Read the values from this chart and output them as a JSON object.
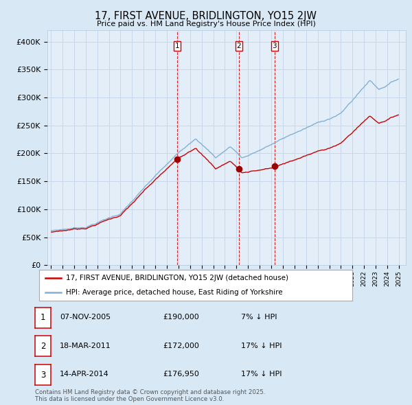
{
  "title": "17, FIRST AVENUE, BRIDLINGTON, YO15 2JW",
  "subtitle": "Price paid vs. HM Land Registry's House Price Index (HPI)",
  "legend_line1": "17, FIRST AVENUE, BRIDLINGTON, YO15 2JW (detached house)",
  "legend_line2": "HPI: Average price, detached house, East Riding of Yorkshire",
  "sale1_date": "07-NOV-2005",
  "sale1_price": 190000,
  "sale1_pct": "7% ↓ HPI",
  "sale2_date": "18-MAR-2011",
  "sale2_price": 172000,
  "sale2_pct": "17% ↓ HPI",
  "sale3_date": "14-APR-2014",
  "sale3_price": 176950,
  "sale3_pct": "17% ↓ HPI",
  "footer": "Contains HM Land Registry data © Crown copyright and database right 2025.\nThis data is licensed under the Open Government Licence v3.0.",
  "bg_color": "#d8e8f5",
  "plot_bg_color": "#e4eef8",
  "line_blue": "#82b0d8",
  "line_red": "#cc0000",
  "marker_color": "#990000",
  "grid_color": "#c8d8ea",
  "vline_color": "#cc0000",
  "yticks": [
    0,
    50000,
    100000,
    150000,
    200000,
    250000,
    300000,
    350000,
    400000
  ],
  "ytick_labels": [
    "£0",
    "£50K",
    "£100K",
    "£150K",
    "£200K",
    "£250K",
    "£300K",
    "£350K",
    "£400K"
  ],
  "start_year": 1995,
  "end_year": 2025
}
